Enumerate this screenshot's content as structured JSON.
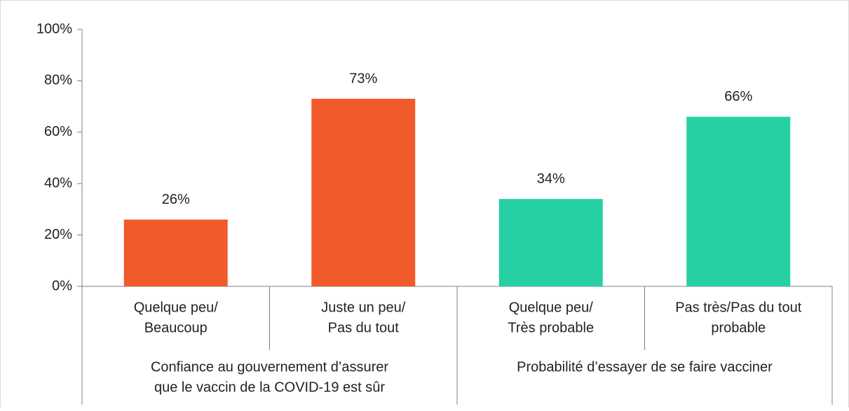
{
  "chart_data": {
    "type": "bar",
    "groups": [
      {
        "label": [
          "Confiance au gouvernement d’assurer",
          "que le vaccin de la COVID-19 est sûr"
        ],
        "color": "#f15a2b",
        "categories": [
          [
            "Quelque peu/",
            "Beaucoup"
          ],
          [
            "Juste un peu/",
            "Pas du tout"
          ]
        ],
        "values": [
          26,
          73
        ],
        "value_labels": [
          "26%",
          "73%"
        ]
      },
      {
        "label": [
          "Probabilité d’essayer de se faire vacciner"
        ],
        "color": "#26d0a4",
        "categories": [
          [
            "Quelque peu/",
            "Très probable"
          ],
          [
            "Pas très/Pas du tout",
            "probable"
          ]
        ],
        "values": [
          34,
          66
        ],
        "value_labels": [
          "34%",
          "66%"
        ]
      }
    ],
    "ylim": [
      0,
      100
    ],
    "yticks": [
      {
        "value": 0,
        "label": "0%"
      },
      {
        "value": 20,
        "label": "20%"
      },
      {
        "value": 40,
        "label": "40%"
      },
      {
        "value": 60,
        "label": "60%"
      },
      {
        "value": 80,
        "label": "80%"
      },
      {
        "value": 100,
        "label": "100%"
      }
    ]
  }
}
